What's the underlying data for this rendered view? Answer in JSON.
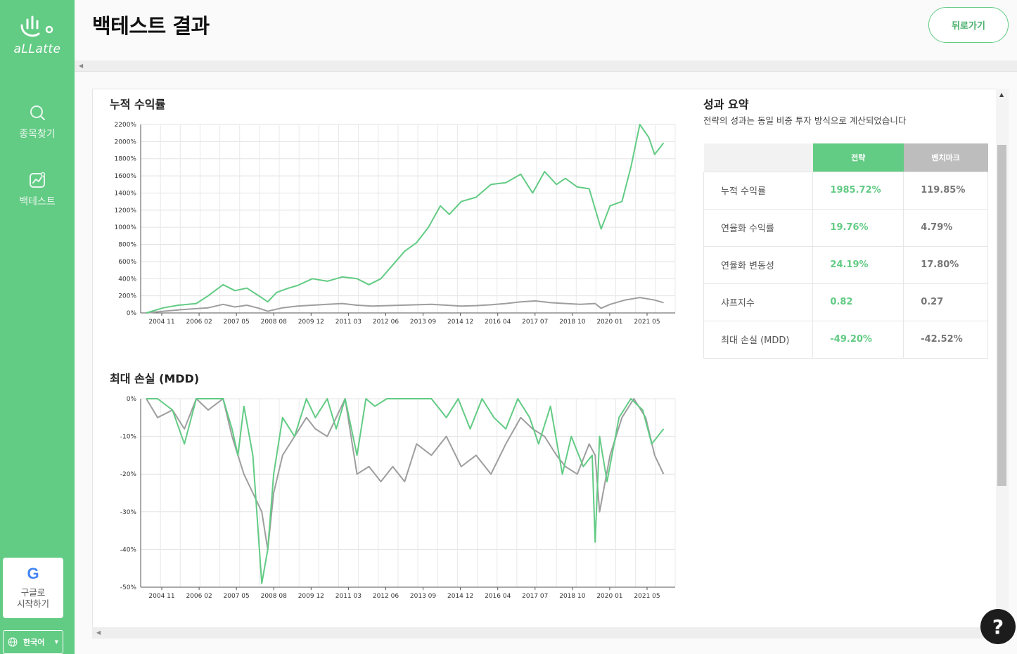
{
  "brand": {
    "name": "aLLatte"
  },
  "nav": [
    {
      "label": "종목찾기",
      "icon": "search-icon"
    },
    {
      "label": "백테스트",
      "icon": "chart-icon"
    }
  ],
  "google": {
    "label_line1": "구글로",
    "label_line2": "시작하기",
    "icon": "google-icon"
  },
  "language": {
    "label": "한국어",
    "icon": "globe-icon"
  },
  "header": {
    "title": "백테스트 결과",
    "back_label": "뒤로가기"
  },
  "summary": {
    "title": "성과 요약",
    "subtitle": "전략의 성과는 동일 비중 투자 방식으로 계산되었습니다",
    "col_strategy": "전략",
    "col_benchmark": "벤치마크",
    "rows": [
      {
        "label": "누적 수익률",
        "strategy": "1985.72%",
        "benchmark": "119.85%"
      },
      {
        "label": "연율화 수익률",
        "strategy": "19.76%",
        "benchmark": "4.79%"
      },
      {
        "label": "연율화 변동성",
        "strategy": "24.19%",
        "benchmark": "17.80%"
      },
      {
        "label": "샤프지수",
        "strategy": "0.82",
        "benchmark": "0.27"
      },
      {
        "label": "최대 손실 (MDD)",
        "strategy": "-49.20%",
        "benchmark": "-42.52%"
      }
    ]
  },
  "colors": {
    "accent": "#62cb84",
    "strategy": "#62cb84",
    "benchmark": "#9e9e9e"
  },
  "help": {
    "label": "?"
  },
  "chart_data": [
    {
      "type": "line",
      "title": "누적 수익률",
      "x_ticks": [
        "2004 11",
        "2006 02",
        "2007 05",
        "2008 08",
        "2009 12",
        "2011 03",
        "2012 06",
        "2013 09",
        "2014 12",
        "2016 04",
        "2017 07",
        "2018 10",
        "2020 01",
        "2021 05"
      ],
      "y_ticks": [
        "0%",
        "200%",
        "400%",
        "600%",
        "800%",
        "1000%",
        "1200%",
        "1400%",
        "1600%",
        "1800%",
        "2000%",
        "2200%"
      ],
      "ylim": [
        0,
        2200
      ],
      "series": [
        {
          "key": "strategy",
          "x": [
            2004.92,
            2005.5,
            2006.0,
            2006.6,
            2007.0,
            2007.5,
            2007.9,
            2008.3,
            2008.7,
            2009.0,
            2009.3,
            2009.7,
            2010.0,
            2010.5,
            2011.0,
            2011.5,
            2012.0,
            2012.4,
            2012.8,
            2013.2,
            2013.6,
            2014.0,
            2014.4,
            2014.8,
            2015.1,
            2015.5,
            2016.0,
            2016.5,
            2017.0,
            2017.5,
            2017.9,
            2018.3,
            2018.7,
            2019.0,
            2019.4,
            2019.8,
            2020.2,
            2020.5,
            2020.9,
            2021.2,
            2021.5,
            2021.8,
            2022.0,
            2022.3
          ],
          "values": [
            0,
            60,
            90,
            110,
            200,
            330,
            260,
            290,
            200,
            130,
            240,
            290,
            320,
            400,
            370,
            420,
            400,
            330,
            400,
            560,
            720,
            820,
            1000,
            1250,
            1150,
            1300,
            1350,
            1500,
            1520,
            1620,
            1400,
            1650,
            1500,
            1570,
            1470,
            1450,
            980,
            1250,
            1300,
            1700,
            2200,
            2050,
            1850,
            1985
          ]
        },
        {
          "key": "benchmark",
          "x": [
            2004.92,
            2005.5,
            2006.0,
            2006.6,
            2007.0,
            2007.5,
            2007.9,
            2008.3,
            2008.7,
            2009.0,
            2009.5,
            2010.0,
            2010.5,
            2011.0,
            2011.5,
            2012.0,
            2012.5,
            2013.0,
            2013.5,
            2014.0,
            2014.5,
            2015.0,
            2015.5,
            2016.0,
            2016.5,
            2017.0,
            2017.5,
            2018.0,
            2018.5,
            2019.0,
            2019.5,
            2020.0,
            2020.2,
            2020.5,
            2021.0,
            2021.5,
            2022.0,
            2022.3
          ],
          "values": [
            0,
            20,
            35,
            50,
            60,
            100,
            70,
            90,
            55,
            20,
            60,
            80,
            90,
            100,
            110,
            90,
            80,
            85,
            90,
            95,
            100,
            90,
            80,
            85,
            95,
            110,
            130,
            140,
            120,
            110,
            100,
            110,
            55,
            100,
            150,
            180,
            150,
            120
          ]
        }
      ]
    },
    {
      "type": "line",
      "title": "최대 손실 (MDD)",
      "x_ticks": [
        "2004 11",
        "2006 02",
        "2007 05",
        "2008 08",
        "2009 12",
        "2011 03",
        "2012 06",
        "2013 09",
        "2014 12",
        "2016 04",
        "2017 07",
        "2018 10",
        "2020 01",
        "2021 05"
      ],
      "y_ticks": [
        "0%",
        "-10%",
        "-20%",
        "-30%",
        "-40%",
        "-50%"
      ],
      "ylim": [
        -50,
        0
      ],
      "series": [
        {
          "key": "strategy",
          "x": [
            2004.92,
            2005.3,
            2005.8,
            2006.2,
            2006.6,
            2007.0,
            2007.5,
            2007.8,
            2008.0,
            2008.2,
            2008.5,
            2008.8,
            2009.0,
            2009.2,
            2009.5,
            2009.9,
            2010.3,
            2010.6,
            2011.0,
            2011.3,
            2011.6,
            2012.0,
            2012.3,
            2012.6,
            2013.0,
            2013.5,
            2014.0,
            2014.5,
            2015.0,
            2015.4,
            2015.8,
            2016.2,
            2016.6,
            2017.0,
            2017.4,
            2017.8,
            2018.1,
            2018.5,
            2018.9,
            2019.2,
            2019.6,
            2019.9,
            2020.0,
            2020.15,
            2020.4,
            2020.8,
            2021.2,
            2021.6,
            2021.9,
            2022.1,
            2022.3
          ],
          "values": [
            0,
            0,
            -3,
            -12,
            0,
            0,
            0,
            -8,
            -15,
            -2,
            -15,
            -49,
            -40,
            -20,
            -5,
            -10,
            0,
            -5,
            0,
            -8,
            0,
            -15,
            0,
            -2,
            0,
            0,
            0,
            0,
            -5,
            0,
            -8,
            0,
            -5,
            -8,
            0,
            -5,
            -12,
            -2,
            -20,
            -10,
            -18,
            -15,
            -38,
            -10,
            -22,
            -5,
            0,
            -3,
            -12,
            -10,
            -8
          ]
        },
        {
          "key": "benchmark",
          "x": [
            2004.92,
            2005.3,
            2005.8,
            2006.2,
            2006.6,
            2007.0,
            2007.5,
            2007.8,
            2008.0,
            2008.2,
            2008.5,
            2008.8,
            2009.0,
            2009.2,
            2009.5,
            2009.9,
            2010.3,
            2010.6,
            2011.0,
            2011.3,
            2011.6,
            2012.0,
            2012.4,
            2012.8,
            2013.2,
            2013.6,
            2014.0,
            2014.5,
            2015.0,
            2015.5,
            2016.0,
            2016.5,
            2017.0,
            2017.5,
            2017.9,
            2018.3,
            2018.7,
            2019.0,
            2019.4,
            2019.8,
            2020.0,
            2020.15,
            2020.5,
            2020.9,
            2021.3,
            2021.7,
            2022.0,
            2022.3
          ],
          "values": [
            0,
            -5,
            -3,
            -8,
            0,
            -3,
            0,
            -10,
            -15,
            -20,
            -25,
            -30,
            -40,
            -25,
            -15,
            -10,
            -5,
            -8,
            -10,
            -5,
            0,
            -20,
            -18,
            -22,
            -18,
            -22,
            -12,
            -15,
            -10,
            -18,
            -15,
            -20,
            -12,
            -5,
            -8,
            -10,
            -15,
            -18,
            -20,
            -12,
            -15,
            -30,
            -15,
            -5,
            0,
            -5,
            -15,
            -20
          ]
        }
      ]
    }
  ]
}
